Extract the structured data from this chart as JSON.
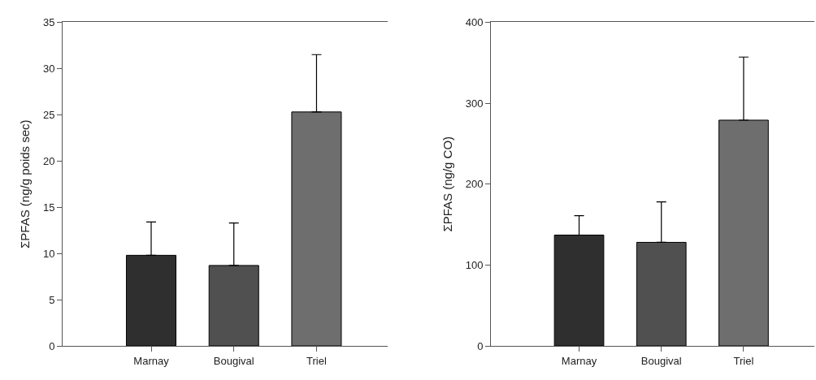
{
  "chart_data": [
    {
      "type": "bar",
      "ylabel": "ΣPFAS (ng/g poids sec)",
      "categories": [
        "Marnay",
        "Bougival",
        "Triel"
      ],
      "values": [
        9.8,
        8.7,
        25.3
      ],
      "colors": [
        "#2f2f2f",
        "#505050",
        "#6e6e6e"
      ],
      "errors": [
        [
          9.8,
          13.4
        ],
        [
          8.7,
          13.3
        ],
        [
          25.3,
          31.5
        ]
      ],
      "ylim": [
        0,
        35
      ],
      "yticks": [
        0,
        5,
        10,
        15,
        20,
        25,
        30,
        35
      ]
    },
    {
      "type": "bar",
      "ylabel": "ΣPFAS (ng/g CO)",
      "categories": [
        "Marnay",
        "Bougival",
        "Triel"
      ],
      "values": [
        137,
        128,
        279
      ],
      "colors": [
        "#2f2f2f",
        "#505050",
        "#6e6e6e"
      ],
      "errors": [
        [
          137,
          161
        ],
        [
          128,
          178
        ],
        [
          279,
          357
        ]
      ],
      "ylim": [
        0,
        400
      ],
      "yticks": [
        0,
        100,
        200,
        300,
        400
      ]
    }
  ]
}
